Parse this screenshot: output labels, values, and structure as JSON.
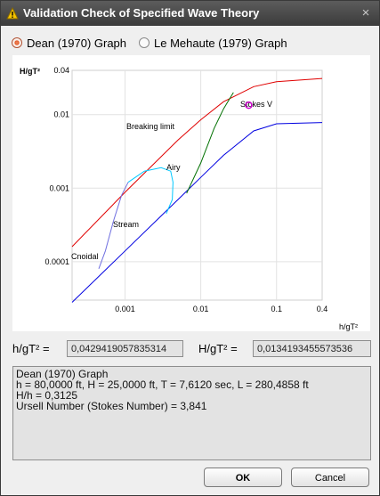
{
  "window": {
    "title": "Validation Check of Specified Wave Theory",
    "close_glyph": "×"
  },
  "options": {
    "dean_label": "Dean (1970) Graph",
    "dean_selected": true,
    "lemehaute_label": "Le Mehaute (1979) Graph",
    "lemehaute_selected": false
  },
  "chart": {
    "ylabel": "H/gT²",
    "xlabel": "h/gT²",
    "y_ticks": [
      "0.04",
      "0.01",
      "0.001",
      "0.0001"
    ],
    "x_ticks": [
      "0.001",
      "0.01",
      "0.1",
      "0.4"
    ],
    "regions": {
      "breaking": "Breaking limit",
      "airy": "Airy",
      "stokes": "Stokes V",
      "stream": "Stream",
      "cnoidal": "Cnoidal"
    },
    "colors": {
      "breaking_limit": "#e00000",
      "shallow_limit": "#0000e0",
      "airy_boundary": "#007000",
      "stream_boundary": "#00c8ff",
      "cnoidal_boundary": "#7070e0",
      "marker": "#cc00cc"
    },
    "point": {
      "h_gT2": 0.0429419057835314,
      "H_gT2": 0.0134193455573536
    }
  },
  "chart_data": {
    "type": "line",
    "title": "",
    "xlabel": "h/gT²",
    "ylabel": "H/gT²",
    "x_scale": "log",
    "y_scale": "log",
    "xlim": [
      0.0002,
      0.4
    ],
    "ylim": [
      3e-05,
      0.04
    ],
    "series": [
      {
        "color": "#e00000",
        "x": [
          0.0002,
          0.001,
          0.005,
          0.01,
          0.02,
          0.05,
          0.1,
          0.4
        ],
        "y": [
          0.00016,
          0.00088,
          0.0045,
          0.0085,
          0.015,
          0.024,
          0.028,
          0.031
        ]
      },
      {
        "color": "#0000e0",
        "x": [
          0.0002,
          0.001,
          0.005,
          0.01,
          0.02,
          0.05,
          0.1,
          0.4
        ],
        "y": [
          2.8e-05,
          0.00014,
          0.0007,
          0.0014,
          0.0028,
          0.006,
          0.0075,
          0.0078
        ]
      },
      {
        "color": "#007000",
        "x": [
          0.0065,
          0.01,
          0.015,
          0.02,
          0.027
        ],
        "y": [
          0.00085,
          0.0022,
          0.0065,
          0.012,
          0.02
        ]
      },
      {
        "color": "#00c8ff",
        "x": [
          0.0011,
          0.0018,
          0.003,
          0.004,
          0.0043,
          0.0042,
          0.0035
        ],
        "y": [
          0.0012,
          0.0017,
          0.0019,
          0.0017,
          0.0012,
          0.0007,
          0.00045
        ]
      },
      {
        "color": "#7070e0",
        "x": [
          0.00045,
          0.00055,
          0.0007,
          0.0009,
          0.0011
        ],
        "y": [
          8e-05,
          0.00014,
          0.00035,
          0.0008,
          0.0012
        ]
      }
    ],
    "point": {
      "x": 0.0429419057835314,
      "y": 0.0134193455573536
    }
  },
  "fields": {
    "h_label": "h/gT² =",
    "h_value": "0,0429419057835314",
    "H_label": "H/gT² =",
    "H_value": "0,0134193455573536"
  },
  "result": {
    "line1": "Dean (1970) Graph",
    "line2": "h = 80,0000 ft, H = 25,0000 ft, T = 7,6120 sec, L = 280,4858 ft",
    "line3": "H/h = 0,3125",
    "line4": "Ursell Number (Stokes Number) = 3,841"
  },
  "buttons": {
    "ok_label": "OK",
    "cancel_label": "Cancel"
  }
}
